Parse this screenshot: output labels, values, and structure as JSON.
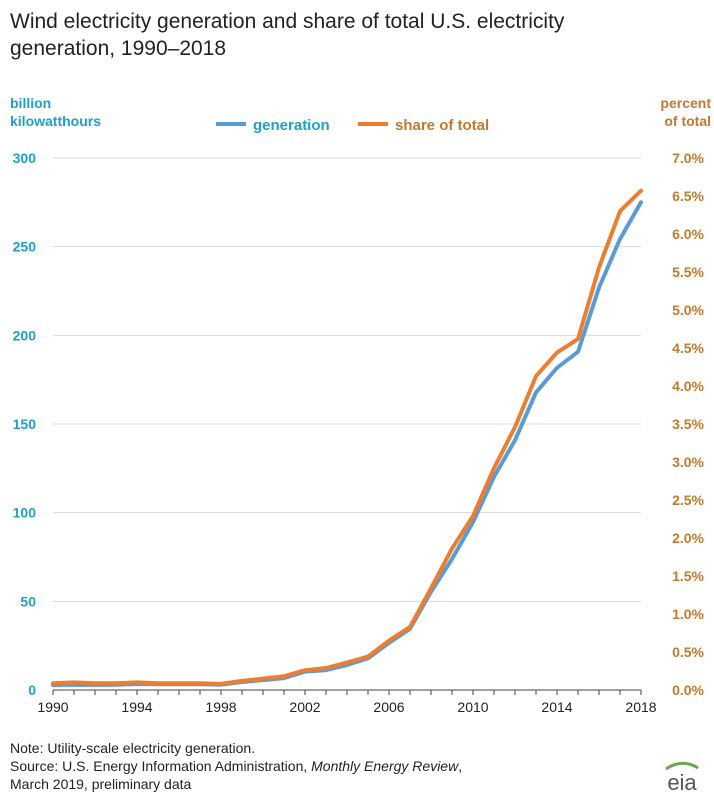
{
  "title": "Wind electricity generation and share of total U.S. electricity generation, 1990–2018",
  "left_axis_label_line1": "billion",
  "left_axis_label_line2": "kilowatthours",
  "right_axis_label_line1": "percent",
  "right_axis_label_line2": "of total",
  "note_line1": "Note: Utility-scale electricity generation.",
  "source_prefix": "Source: U.S. Energy Information Administration, ",
  "source_title": "Monthly Energy Review",
  "source_suffix": ",",
  "source_line2": "March 2019, preliminary data",
  "logo_text": "eia",
  "colors": {
    "generation": "#5b9bd5",
    "share": "#ed7d31",
    "left_axis": "#1ea0c9",
    "right_axis": "#c07a2e",
    "logo_green": "#6aa84f",
    "logo_blue": "#1f6fb5"
  },
  "chart_data": {
    "type": "line",
    "title": "Wind electricity generation and share of total U.S. electricity generation, 1990–2018",
    "xlabel": "",
    "x": [
      1990,
      1991,
      1992,
      1993,
      1994,
      1995,
      1996,
      1997,
      1998,
      1999,
      2000,
      2001,
      2002,
      2003,
      2004,
      2005,
      2006,
      2007,
      2008,
      2009,
      2010,
      2011,
      2012,
      2013,
      2014,
      2015,
      2016,
      2017,
      2018
    ],
    "x_ticks": [
      "1990",
      "1994",
      "1998",
      "2002",
      "2006",
      "2010",
      "2014",
      "2018"
    ],
    "xlim": [
      1990,
      2018
    ],
    "series": [
      {
        "name": "generation",
        "axis": "left",
        "unit": "billion kilowatthours",
        "values": [
          2.8,
          3.0,
          2.9,
          3.0,
          3.4,
          3.2,
          3.2,
          3.3,
          3.0,
          4.5,
          5.6,
          6.7,
          10.4,
          11.2,
          14.1,
          17.8,
          26.6,
          34.5,
          55.4,
          73.9,
          94.7,
          120.2,
          140.8,
          167.8,
          181.7,
          190.7,
          226.9,
          254.3,
          275.0
        ]
      },
      {
        "name": "share of total",
        "axis": "right",
        "unit": "percent",
        "values": [
          0.09,
          0.1,
          0.09,
          0.09,
          0.1,
          0.09,
          0.09,
          0.09,
          0.08,
          0.12,
          0.15,
          0.18,
          0.26,
          0.29,
          0.36,
          0.44,
          0.65,
          0.83,
          1.34,
          1.86,
          2.29,
          2.92,
          3.46,
          4.13,
          4.44,
          4.62,
          5.56,
          6.3,
          6.57
        ]
      }
    ],
    "left_axis": {
      "label": "billion kilowatthours",
      "ylim": [
        0,
        300
      ],
      "ticks": [
        "0",
        "50",
        "100",
        "150",
        "200",
        "250",
        "300"
      ]
    },
    "right_axis": {
      "label": "percent of total",
      "ylim": [
        0,
        7
      ],
      "ticks": [
        "0.0%",
        "0.5%",
        "1.0%",
        "1.5%",
        "2.0%",
        "2.5%",
        "3.0%",
        "3.5%",
        "4.0%",
        "4.5%",
        "5.0%",
        "5.5%",
        "6.0%",
        "6.5%",
        "7.0%"
      ]
    },
    "legend": [
      "generation",
      "share of total"
    ],
    "legend_position": "top-center",
    "grid": true
  }
}
